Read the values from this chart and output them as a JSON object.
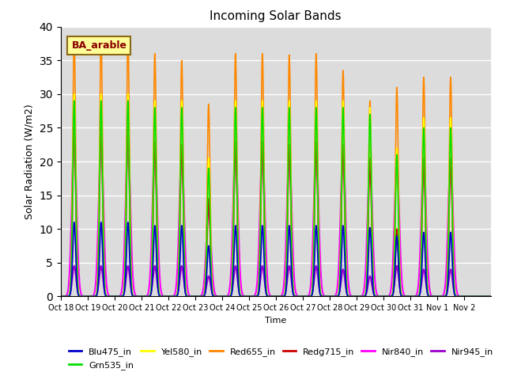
{
  "title": "Incoming Solar Bands",
  "xlabel": "Time",
  "ylabel": "Solar Radiation (W/m2)",
  "annotation": "BA_arable",
  "ylim": [
    0,
    40
  ],
  "background_color": "#dcdcdc",
  "tick_labels": [
    "Oct 18",
    "Oct 19",
    "Oct 20",
    "Oct 21",
    "Oct 22",
    "Oct 23",
    "Oct 24",
    "Oct 25",
    "Oct 26",
    "Oct 27",
    "Oct 28",
    "Oct 29",
    "Oct 30",
    "Oct 31",
    "Nov 1",
    "Nov 2"
  ],
  "series_order_plot": [
    "Nir945_in",
    "Nir840_in",
    "Redg715_in",
    "Red655_in",
    "Yel580_in",
    "Grn535_in",
    "Blu475_in"
  ],
  "legend_order": [
    "Blu475_in",
    "Grn535_in",
    "Yel580_in",
    "Red655_in",
    "Redg715_in",
    "Nir840_in",
    "Nir945_in"
  ],
  "series": {
    "Blu475_in": {
      "color": "#0000cc",
      "lw": 1.2
    },
    "Grn535_in": {
      "color": "#00dd00",
      "lw": 1.2
    },
    "Yel580_in": {
      "color": "#ffff00",
      "lw": 1.2
    },
    "Red655_in": {
      "color": "#ff8800",
      "lw": 1.2
    },
    "Redg715_in": {
      "color": "#cc0000",
      "lw": 1.2
    },
    "Nir840_in": {
      "color": "#ff00ff",
      "lw": 1.5
    },
    "Nir945_in": {
      "color": "#9900cc",
      "lw": 1.5
    }
  },
  "peak_heights": {
    "Blu475_in": [
      11.0,
      11.0,
      11.0,
      10.5,
      10.5,
      7.5,
      10.5,
      10.5,
      10.5,
      10.5,
      10.5,
      10.2,
      9.0,
      9.5,
      9.5,
      0
    ],
    "Grn535_in": [
      29.0,
      29.0,
      29.0,
      28.0,
      28.0,
      19.0,
      28.0,
      28.0,
      28.0,
      28.0,
      28.0,
      27.0,
      21.0,
      25.0,
      25.0,
      0
    ],
    "Yel580_in": [
      30.0,
      30.0,
      30.0,
      29.0,
      29.0,
      20.5,
      29.0,
      29.0,
      29.0,
      29.0,
      29.0,
      28.0,
      22.0,
      26.5,
      26.5,
      0
    ],
    "Red655_in": [
      38.5,
      38.5,
      38.5,
      36.0,
      35.0,
      28.5,
      36.0,
      36.0,
      35.8,
      36.0,
      33.5,
      29.0,
      31.0,
      32.5,
      32.5,
      0
    ],
    "Redg715_in": [
      25.0,
      25.0,
      25.0,
      23.0,
      22.5,
      14.5,
      23.0,
      23.0,
      22.5,
      23.0,
      22.5,
      20.5,
      10.0,
      20.5,
      20.5,
      0
    ],
    "Nir840_in": [
      23.0,
      23.0,
      23.0,
      22.0,
      21.5,
      13.0,
      22.0,
      22.0,
      21.5,
      22.0,
      22.0,
      20.0,
      20.0,
      20.5,
      20.5,
      0
    ],
    "Nir945_in": [
      4.5,
      4.5,
      4.5,
      4.5,
      4.5,
      3.0,
      4.5,
      4.5,
      4.5,
      4.5,
      4.0,
      3.0,
      4.5,
      4.0,
      4.0,
      0
    ]
  },
  "nir840_widths": [
    0.25,
    0.25,
    0.25,
    0.25,
    0.25,
    0.22,
    0.25,
    0.25,
    0.25,
    0.25,
    0.25,
    0.25,
    0.25,
    0.25,
    0.25,
    0
  ],
  "n_days": 16,
  "points_per_day": 200,
  "sigma_narrow": 0.055,
  "sigma_nir840": 0.09,
  "sigma_nir945": 0.07
}
